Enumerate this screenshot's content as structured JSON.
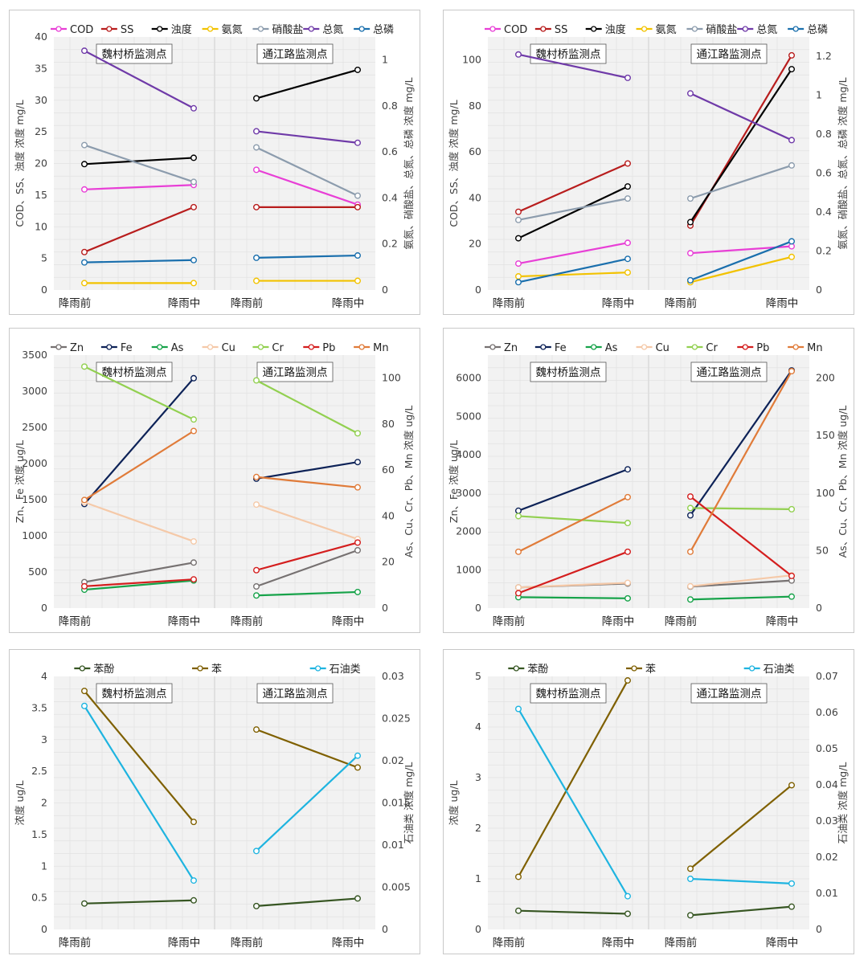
{
  "chart_data": [
    {
      "type": "line",
      "row": 0,
      "col": 0,
      "categories": [
        "降雨前",
        "降雨中"
      ],
      "groups": [
        "魏村桥监测点",
        "通江路监测点"
      ],
      "ylabel_left": "COD、SS、浊度 浓度 mg/L",
      "ylabel_right": "氨氮、硝酸盐、总氮、总磷 浓度 mg/L",
      "ylim_left": [
        0,
        40
      ],
      "yticks_left": [
        0,
        5,
        10,
        15,
        20,
        25,
        30,
        35,
        40
      ],
      "ylim_right": [
        0,
        1.1
      ],
      "yticks_right": [
        0,
        0.2,
        0.4,
        0.6,
        0.8,
        1
      ],
      "grid": true,
      "legend": "top",
      "series": [
        {
          "name": "COD",
          "color": "#e83fd6",
          "axis": "left",
          "g1": [
            15.9,
            16.6
          ],
          "g2": [
            19.0,
            13.5
          ]
        },
        {
          "name": "SS",
          "color": "#b81d1d",
          "axis": "left",
          "g1": [
            6.0,
            13.1
          ],
          "g2": [
            13.1,
            13.1
          ]
        },
        {
          "name": "浊度",
          "color": "#000000",
          "axis": "left",
          "g1": [
            19.9,
            20.9
          ],
          "g2": [
            30.3,
            34.8
          ]
        },
        {
          "name": "氨氮",
          "color": "#f2c200",
          "axis": "right",
          "g1": [
            0.03,
            0.03
          ],
          "g2": [
            0.04,
            0.04
          ]
        },
        {
          "name": "硝酸盐",
          "color": "#8c9cad",
          "axis": "right",
          "g1": [
            0.63,
            0.47
          ],
          "g2": [
            0.62,
            0.41
          ]
        },
        {
          "name": "总氮",
          "color": "#6f3aa8",
          "axis": "right",
          "g1": [
            1.04,
            0.79
          ],
          "g2": [
            0.69,
            0.64
          ]
        },
        {
          "name": "总磷",
          "color": "#1a6fad",
          "axis": "right",
          "g1": [
            0.12,
            0.13
          ],
          "g2": [
            0.14,
            0.15
          ]
        }
      ]
    },
    {
      "type": "line",
      "row": 0,
      "col": 1,
      "categories": [
        "降雨前",
        "降雨中"
      ],
      "groups": [
        "魏村桥监测点",
        "通江路监测点"
      ],
      "ylabel_left": "COD、SS、浊度 浓度 mg/L",
      "ylabel_right": "氨氮、硝酸盐、总氮、总磷 浓度 mg/L",
      "ylim_left": [
        0,
        110
      ],
      "yticks_left": [
        0,
        20,
        40,
        60,
        80,
        100
      ],
      "ylim_right": [
        0,
        1.3
      ],
      "yticks_right": [
        0,
        0.2,
        0.4,
        0.6,
        0.8,
        1,
        1.2
      ],
      "grid": true,
      "legend": "top",
      "series": [
        {
          "name": "COD",
          "color": "#e83fd6",
          "axis": "left",
          "g1": [
            11.5,
            20.5
          ],
          "g2": [
            16.0,
            19.0
          ]
        },
        {
          "name": "SS",
          "color": "#b81d1d",
          "axis": "left",
          "g1": [
            34.0,
            55.0
          ],
          "g2": [
            28.0,
            102.0
          ]
        },
        {
          "name": "浊度",
          "color": "#000000",
          "axis": "left",
          "g1": [
            22.5,
            45.0
          ],
          "g2": [
            29.5,
            96.0
          ]
        },
        {
          "name": "氨氮",
          "color": "#f2c200",
          "axis": "right",
          "g1": [
            0.07,
            0.09
          ],
          "g2": [
            0.04,
            0.17
          ]
        },
        {
          "name": "硝酸盐",
          "color": "#8c9cad",
          "axis": "right",
          "g1": [
            0.36,
            0.47
          ],
          "g2": [
            0.47,
            0.64
          ]
        },
        {
          "name": "总氮",
          "color": "#6f3aa8",
          "axis": "right",
          "g1": [
            1.21,
            1.09
          ],
          "g2": [
            1.01,
            0.77
          ]
        },
        {
          "name": "总磷",
          "color": "#1a6fad",
          "axis": "right",
          "g1": [
            0.04,
            0.16
          ],
          "g2": [
            0.05,
            0.25
          ]
        }
      ]
    },
    {
      "type": "line",
      "row": 1,
      "col": 0,
      "categories": [
        "降雨前",
        "降雨中"
      ],
      "groups": [
        "魏村桥监测点",
        "通江路监测点"
      ],
      "ylabel_left": "Zn、Fe 浓度 ug/L",
      "ylabel_right": "As、Cu、Cr、Pb、Mn 浓度 ug/L",
      "ylim_left": [
        0,
        3500
      ],
      "yticks_left": [
        0,
        500,
        1000,
        1500,
        2000,
        2500,
        3000,
        3500
      ],
      "ylim_right": [
        0,
        110
      ],
      "yticks_right": [
        0,
        20,
        40,
        60,
        80,
        100
      ],
      "grid": true,
      "legend": "top",
      "series": [
        {
          "name": "Zn",
          "color": "#767171",
          "axis": "left",
          "g1": [
            360,
            630
          ],
          "g2": [
            300,
            800
          ]
        },
        {
          "name": "Fe",
          "color": "#0d2257",
          "axis": "left",
          "g1": [
            1440,
            3180
          ],
          "g2": [
            1790,
            2020
          ]
        },
        {
          "name": "As",
          "color": "#17a34a",
          "axis": "right",
          "g1": [
            8,
            12
          ],
          "g2": [
            5.5,
            7
          ]
        },
        {
          "name": "Cu",
          "color": "#f5c9a8",
          "axis": "right",
          "g1": [
            46,
            29
          ],
          "g2": [
            45,
            30
          ]
        },
        {
          "name": "Cr",
          "color": "#92d050",
          "axis": "right",
          "g1": [
            105,
            82
          ],
          "g2": [
            99,
            76
          ]
        },
        {
          "name": "Pb",
          "color": "#d41e1e",
          "axis": "right",
          "g1": [
            9.5,
            12.5
          ],
          "g2": [
            16.5,
            28.5
          ]
        },
        {
          "name": "Mn",
          "color": "#e07b39",
          "axis": "right",
          "g1": [
            47,
            77
          ],
          "g2": [
            57,
            52.5
          ]
        }
      ]
    },
    {
      "type": "line",
      "row": 1,
      "col": 1,
      "categories": [
        "降雨前",
        "降雨中"
      ],
      "groups": [
        "魏村桥监测点",
        "通江路监测点"
      ],
      "ylabel_left": "Zn、Fe 浓度 ug/L",
      "ylabel_right": "As、Cu、Cr、Pb、Mn 浓度 ug/L",
      "ylim_left": [
        0,
        6600
      ],
      "yticks_left": [
        0,
        1000,
        2000,
        3000,
        4000,
        5000,
        6000
      ],
      "ylim_right": [
        0,
        220
      ],
      "yticks_right": [
        0,
        50,
        100,
        150,
        200
      ],
      "grid": true,
      "legend": "top",
      "series": [
        {
          "name": "Zn",
          "color": "#767171",
          "axis": "left",
          "g1": [
            540,
            640
          ],
          "g2": [
            560,
            720
          ]
        },
        {
          "name": "Fe",
          "color": "#0d2257",
          "axis": "left",
          "g1": [
            2540,
            3620
          ],
          "g2": [
            2420,
            6200
          ]
        },
        {
          "name": "As",
          "color": "#17a34a",
          "axis": "right",
          "g1": [
            9.5,
            8.5
          ],
          "g2": [
            7.5,
            10
          ]
        },
        {
          "name": "Cu",
          "color": "#f5c9a8",
          "axis": "right",
          "g1": [
            18,
            22
          ],
          "g2": [
            19,
            28.5
          ]
        },
        {
          "name": "Cr",
          "color": "#92d050",
          "axis": "right",
          "g1": [
            80,
            74
          ],
          "g2": [
            87,
            86
          ]
        },
        {
          "name": "Pb",
          "color": "#d41e1e",
          "axis": "right",
          "g1": [
            13,
            49
          ],
          "g2": [
            97,
            28
          ]
        },
        {
          "name": "Mn",
          "color": "#e07b39",
          "axis": "right",
          "g1": [
            49,
            96.5
          ],
          "g2": [
            49,
            206
          ]
        }
      ]
    },
    {
      "type": "line",
      "row": 2,
      "col": 0,
      "categories": [
        "降雨前",
        "降雨中"
      ],
      "groups": [
        "魏村桥监测点",
        "通江路监测点"
      ],
      "ylabel_left": "浓度 ug/L",
      "ylabel_right": "石油类 浓度 mg/L",
      "ylim_left": [
        0,
        4
      ],
      "yticks_left": [
        0,
        0.5,
        1,
        1.5,
        2,
        2.5,
        3,
        3.5,
        4
      ],
      "ylim_right": [
        0,
        0.03
      ],
      "yticks_right": [
        0,
        0.005,
        0.01,
        0.015,
        0.02,
        0.025,
        0.03
      ],
      "grid": true,
      "legend": "top",
      "series": [
        {
          "name": "苯酚",
          "color": "#375623",
          "axis": "left",
          "g1": [
            0.41,
            0.46
          ],
          "g2": [
            0.37,
            0.49
          ]
        },
        {
          "name": "苯",
          "color": "#7f6000",
          "axis": "left",
          "g1": [
            3.77,
            1.7
          ],
          "g2": [
            3.16,
            2.56
          ]
        },
        {
          "name": "石油类",
          "color": "#1eb4e0",
          "axis": "right",
          "g1": [
            0.0265,
            0.0058
          ],
          "g2": [
            0.0093,
            0.0206
          ]
        }
      ]
    },
    {
      "type": "line",
      "row": 2,
      "col": 1,
      "categories": [
        "降雨前",
        "降雨中"
      ],
      "groups": [
        "魏村桥监测点",
        "通江路监测点"
      ],
      "ylabel_left": "浓度 ug/L",
      "ylabel_right": "石油类 浓度 mg/L",
      "ylim_left": [
        0,
        5
      ],
      "yticks_left": [
        0,
        1,
        2,
        3,
        4,
        5
      ],
      "ylim_right": [
        0,
        0.07
      ],
      "yticks_right": [
        0,
        0.01,
        0.02,
        0.03,
        0.04,
        0.05,
        0.06,
        0.07
      ],
      "grid": true,
      "legend": "top",
      "series": [
        {
          "name": "苯酚",
          "color": "#375623",
          "axis": "left",
          "g1": [
            0.37,
            0.31
          ],
          "g2": [
            0.28,
            0.45
          ]
        },
        {
          "name": "苯",
          "color": "#7f6000",
          "axis": "left",
          "g1": [
            1.04,
            4.92
          ],
          "g2": [
            1.2,
            2.85
          ]
        },
        {
          "name": "石油类",
          "color": "#1eb4e0",
          "axis": "right",
          "g1": [
            0.061,
            0.0092
          ],
          "g2": [
            0.014,
            0.0127
          ]
        }
      ]
    }
  ]
}
